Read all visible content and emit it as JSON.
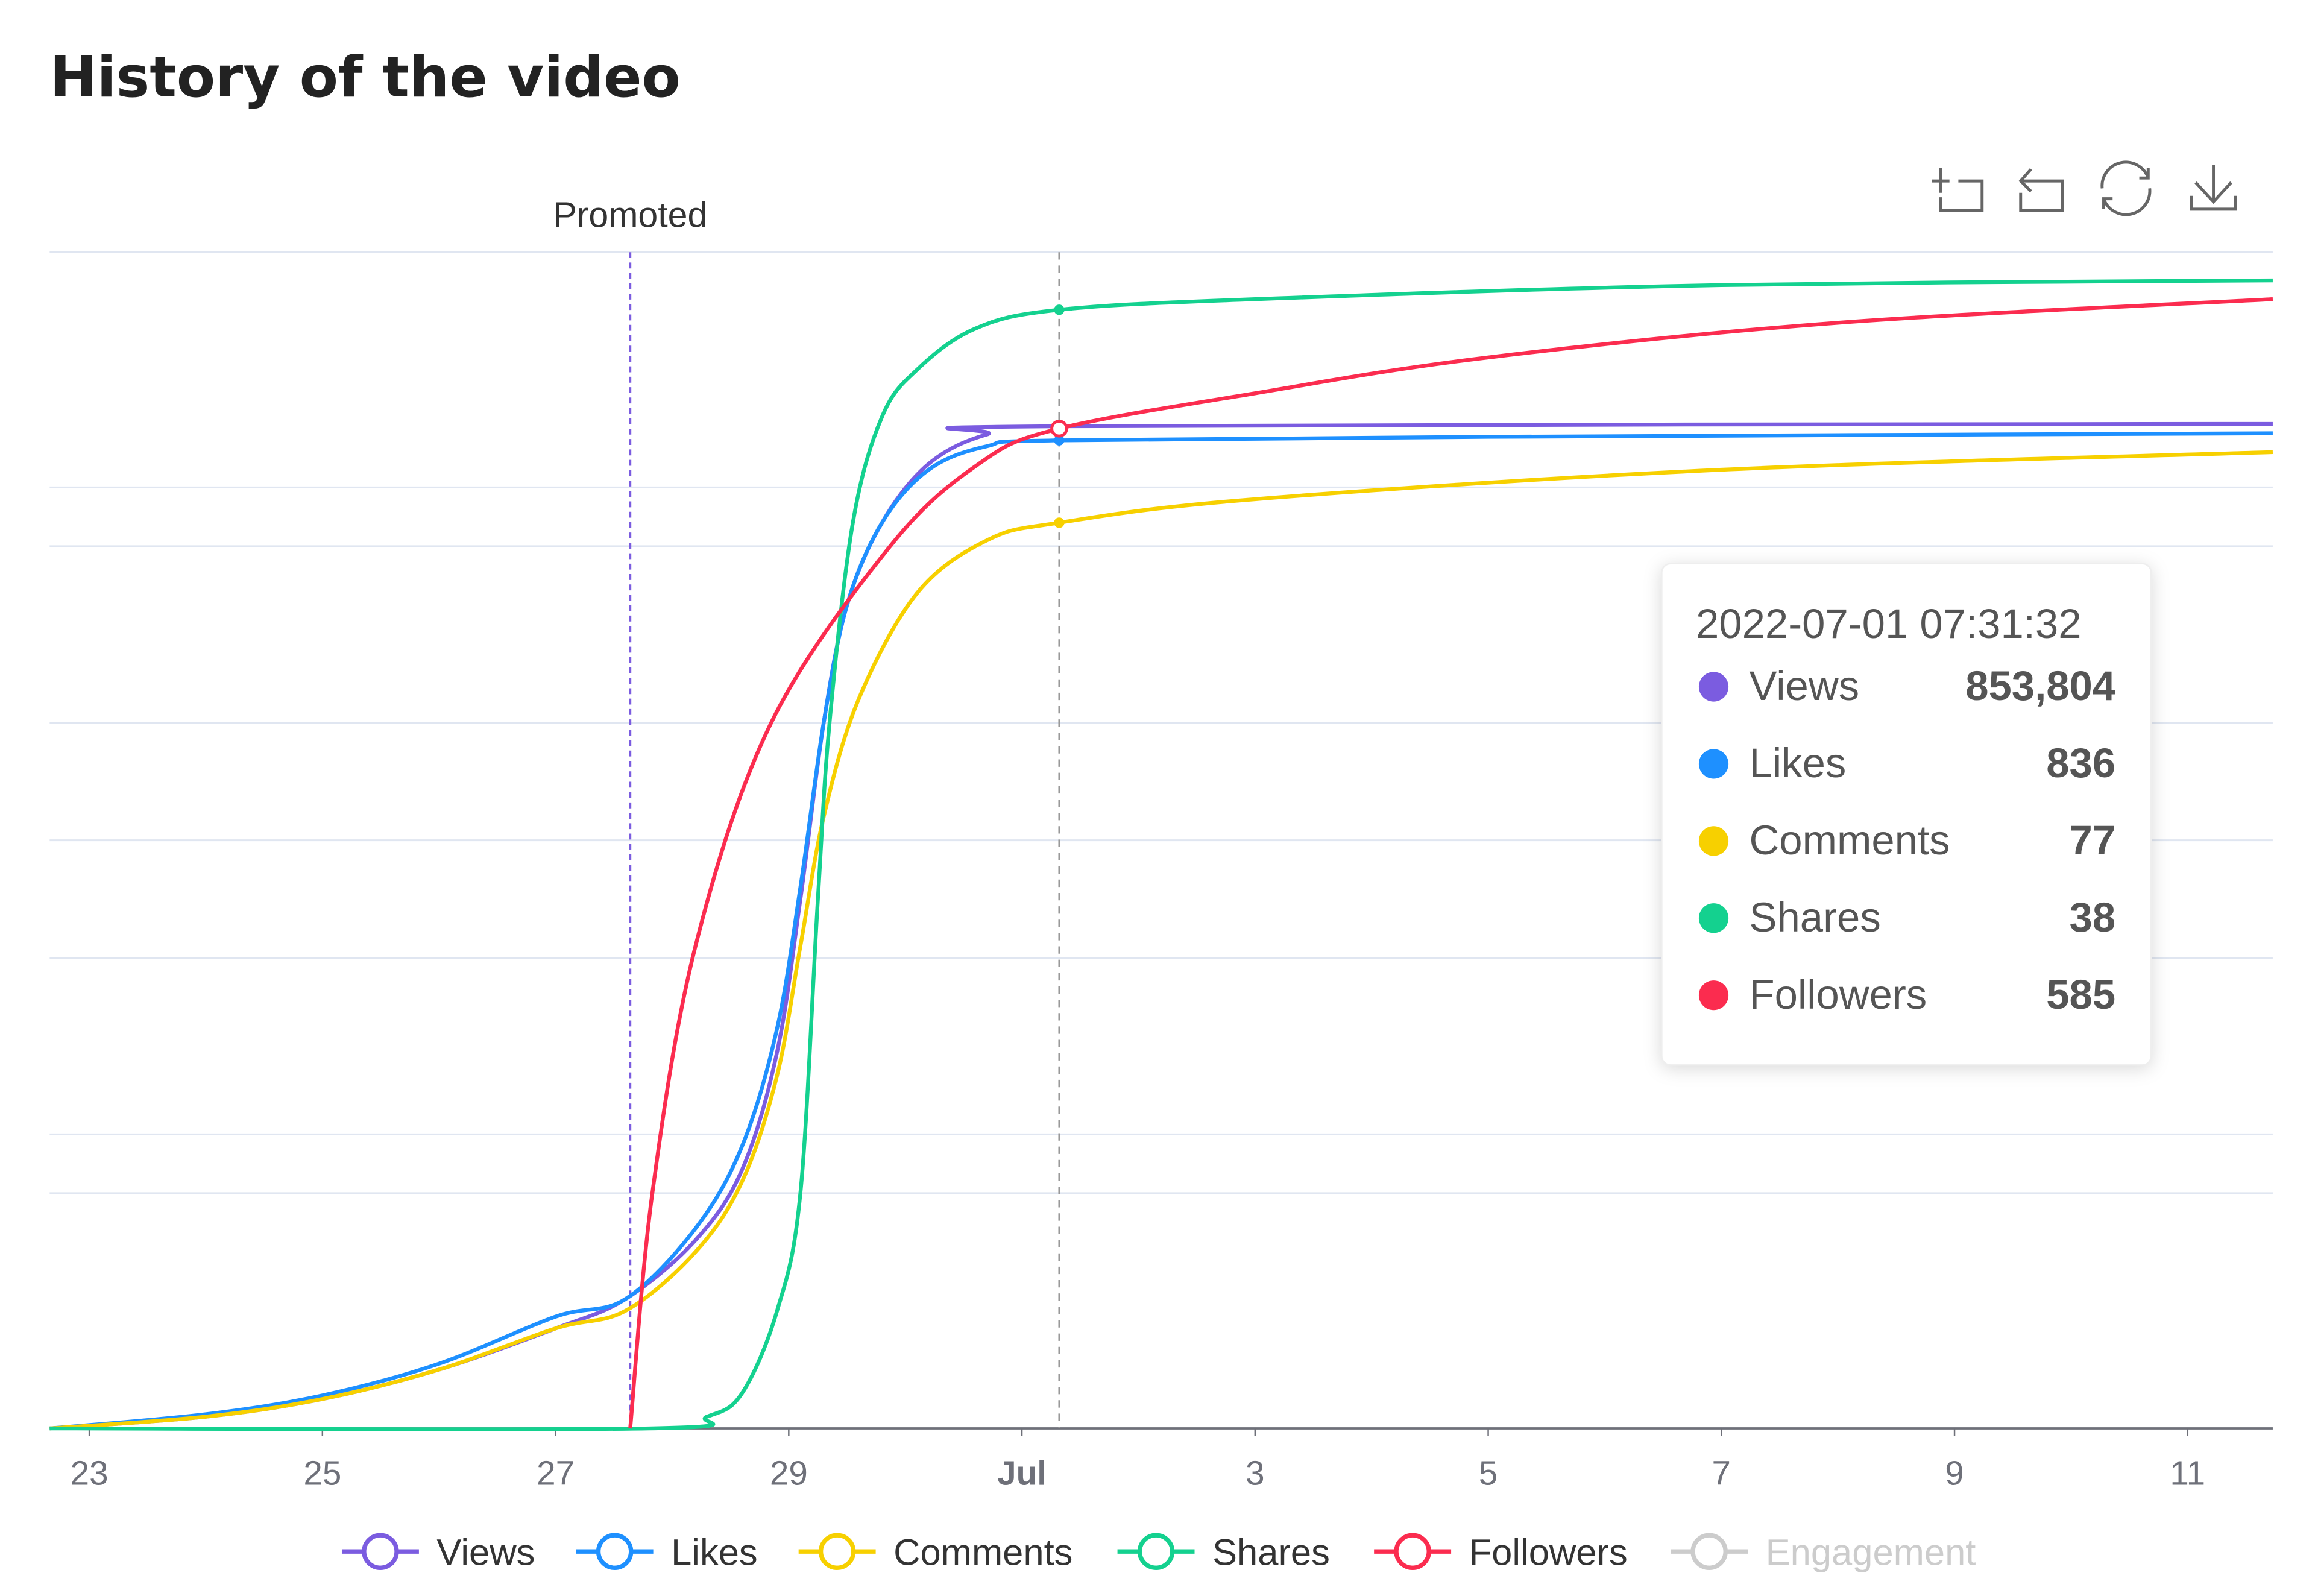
{
  "title": "History of the video",
  "toolbar": [
    {
      "name": "zoom-icon"
    },
    {
      "name": "zoom-reset-icon"
    },
    {
      "name": "restore-icon"
    },
    {
      "name": "download-icon"
    }
  ],
  "chart_data": {
    "type": "line",
    "title": "History of the video",
    "x_unit": "days since 2022-06-23",
    "y_unit": "normalized (each series scaled 0-1)",
    "xlim": [
      -0.34,
      18.73
    ],
    "ylim": [
      0,
      1
    ],
    "x_ticks": [
      {
        "day": 0,
        "label": "23"
      },
      {
        "day": 2,
        "label": "25"
      },
      {
        "day": 4,
        "label": "27"
      },
      {
        "day": 6,
        "label": "29"
      },
      {
        "day": 8,
        "label": "Jul",
        "bold": true
      },
      {
        "day": 10,
        "label": "3"
      },
      {
        "day": 12,
        "label": "5"
      },
      {
        "day": 14,
        "label": "7"
      },
      {
        "day": 16,
        "label": "9"
      },
      {
        "day": 18,
        "label": "11"
      }
    ],
    "grid_y": [
      1,
      0.8,
      0.75,
      0.6,
      0.5,
      0.4,
      0.25,
      0.2
    ],
    "markline": {
      "day": 4.64,
      "label": "Promoted",
      "color": "#7b5ce0"
    },
    "hover_day": 8.32,
    "series": [
      {
        "name": "Views",
        "color": "#7b5ce0",
        "points": [
          [
            -0.34,
            0
          ],
          [
            1,
            0.01
          ],
          [
            2,
            0.025
          ],
          [
            3,
            0.05
          ],
          [
            4,
            0.085
          ],
          [
            4.6,
            0.11
          ],
          [
            5.2,
            0.16
          ],
          [
            5.6,
            0.22
          ],
          [
            5.9,
            0.32
          ],
          [
            6.1,
            0.45
          ],
          [
            6.3,
            0.6
          ],
          [
            6.5,
            0.7
          ],
          [
            6.8,
            0.77
          ],
          [
            7.2,
            0.82
          ],
          [
            7.7,
            0.845
          ],
          [
            8.32,
            0.852
          ],
          [
            18.73,
            0.854
          ]
        ]
      },
      {
        "name": "Likes",
        "color": "#1e90ff",
        "points": [
          [
            -0.34,
            0
          ],
          [
            1,
            0.012
          ],
          [
            2,
            0.028
          ],
          [
            3,
            0.055
          ],
          [
            4,
            0.095
          ],
          [
            4.6,
            0.11
          ],
          [
            5.2,
            0.17
          ],
          [
            5.6,
            0.24
          ],
          [
            5.9,
            0.34
          ],
          [
            6.1,
            0.46
          ],
          [
            6.3,
            0.6
          ],
          [
            6.5,
            0.7
          ],
          [
            6.8,
            0.77
          ],
          [
            7.2,
            0.815
          ],
          [
            7.7,
            0.835
          ],
          [
            8.32,
            0.84
          ],
          [
            12,
            0.843
          ],
          [
            18.73,
            0.846
          ]
        ]
      },
      {
        "name": "Comments",
        "color": "#f7d000",
        "points": [
          [
            -0.34,
            0
          ],
          [
            1,
            0.01
          ],
          [
            2,
            0.025
          ],
          [
            3,
            0.05
          ],
          [
            4,
            0.085
          ],
          [
            4.6,
            0.1
          ],
          [
            5.2,
            0.15
          ],
          [
            5.6,
            0.21
          ],
          [
            5.9,
            0.3
          ],
          [
            6.1,
            0.41
          ],
          [
            6.3,
            0.52
          ],
          [
            6.6,
            0.62
          ],
          [
            7.1,
            0.71
          ],
          [
            7.7,
            0.755
          ],
          [
            8.32,
            0.77
          ],
          [
            10,
            0.79
          ],
          [
            14,
            0.815
          ],
          [
            18.73,
            0.83
          ]
        ]
      },
      {
        "name": "Shares",
        "color": "#14d18f",
        "points": [
          [
            -0.34,
            0
          ],
          [
            4.8,
            0
          ],
          [
            5.3,
            0.01
          ],
          [
            5.6,
            0.03
          ],
          [
            5.9,
            0.1
          ],
          [
            6.1,
            0.2
          ],
          [
            6.25,
            0.45
          ],
          [
            6.35,
            0.6
          ],
          [
            6.55,
            0.77
          ],
          [
            6.8,
            0.86
          ],
          [
            7.1,
            0.9
          ],
          [
            7.6,
            0.935
          ],
          [
            8.32,
            0.951
          ],
          [
            10,
            0.96
          ],
          [
            14,
            0.972
          ],
          [
            18.73,
            0.976
          ]
        ]
      },
      {
        "name": "Followers",
        "color": "#fb2c4f",
        "points": [
          [
            4.64,
            0
          ],
          [
            4.83,
            0.2
          ],
          [
            5.2,
            0.41
          ],
          [
            5.85,
            0.6
          ],
          [
            6.87,
            0.75
          ],
          [
            7.63,
            0.82
          ],
          [
            8.32,
            0.85
          ],
          [
            10,
            0.88
          ],
          [
            11.96,
            0.91
          ],
          [
            15,
            0.94
          ],
          [
            18.73,
            0.96
          ]
        ]
      },
      {
        "name": "Engagement",
        "color": "#cccccc",
        "hidden": true,
        "points": []
      }
    ]
  },
  "tooltip": {
    "timestamp": "2022-07-01 07:31:32",
    "rows": [
      {
        "name": "Views",
        "value": "853,804",
        "color": "#7b5ce0"
      },
      {
        "name": "Likes",
        "value": "836",
        "color": "#1e90ff"
      },
      {
        "name": "Comments",
        "value": "77",
        "color": "#f7d000"
      },
      {
        "name": "Shares",
        "value": "38",
        "color": "#14d18f"
      },
      {
        "name": "Followers",
        "value": "585",
        "color": "#fb2c4f"
      }
    ]
  },
  "legend": [
    {
      "name": "Views",
      "color": "#7b5ce0"
    },
    {
      "name": "Likes",
      "color": "#1e90ff"
    },
    {
      "name": "Comments",
      "color": "#f7d000"
    },
    {
      "name": "Shares",
      "color": "#14d18f"
    },
    {
      "name": "Followers",
      "color": "#fb2c4f"
    },
    {
      "name": "Engagement",
      "color": "#cccccc",
      "disabled": true
    }
  ]
}
